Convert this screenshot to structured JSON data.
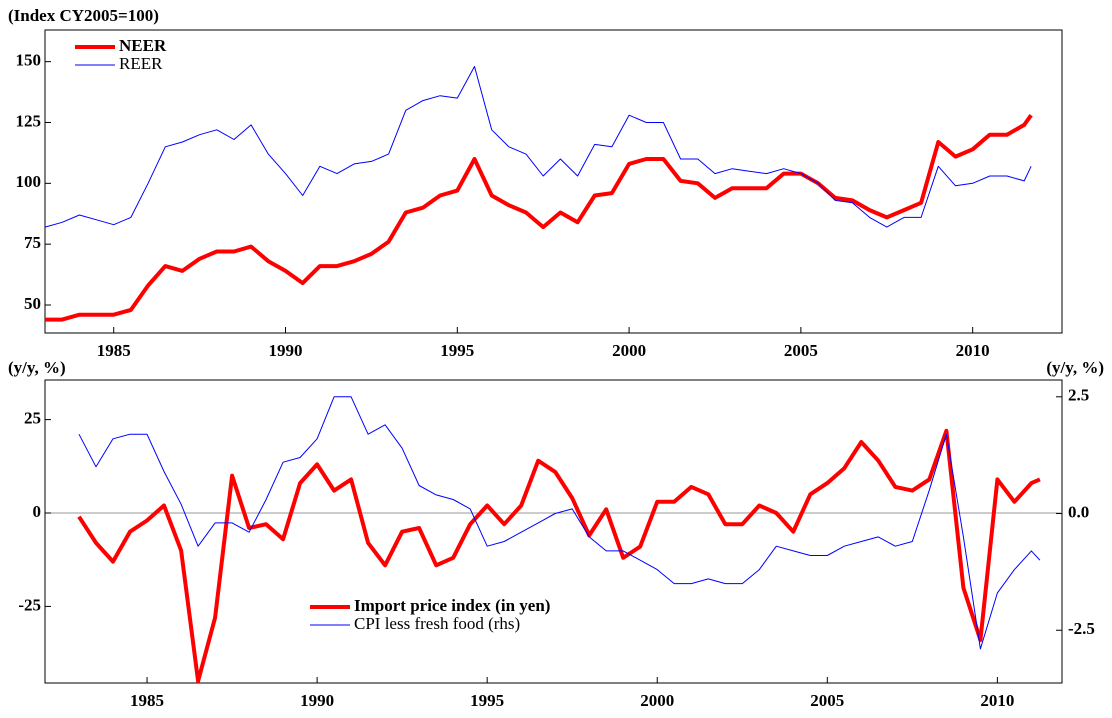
{
  "chart_data": [
    {
      "type": "line",
      "y_label": "(Index CY2005=100)",
      "x": [
        1983,
        1983.5,
        1984,
        1984.5,
        1985,
        1985.5,
        1986,
        1986.5,
        1987,
        1987.5,
        1988,
        1988.5,
        1989,
        1989.5,
        1990,
        1990.5,
        1991,
        1991.5,
        1992,
        1992.5,
        1993,
        1993.5,
        1994,
        1994.5,
        1995,
        1995.5,
        1996,
        1996.5,
        1997,
        1997.5,
        1998,
        1998.5,
        1999,
        1999.5,
        2000,
        2000.5,
        2001,
        2001.5,
        2002,
        2002.5,
        2003,
        2003.5,
        2004,
        2004.5,
        2005,
        2005.5,
        2006,
        2006.5,
        2007,
        2007.5,
        2008,
        2008.5,
        2009,
        2009.5,
        2010,
        2010.5,
        2011,
        2011.5,
        2011.7
      ],
      "series": [
        {
          "name": "NEER",
          "color": "#ff0000",
          "width": 4,
          "values": [
            44,
            44,
            46,
            46,
            46,
            48,
            58,
            66,
            64,
            69,
            72,
            72,
            74,
            68,
            64,
            59,
            66,
            66,
            68,
            71,
            76,
            88,
            90,
            95,
            97,
            110,
            95,
            91,
            88,
            82,
            88,
            84,
            95,
            96,
            108,
            110,
            110,
            101,
            100,
            94,
            98,
            98,
            98,
            104,
            104,
            100,
            94,
            93,
            89,
            86,
            89,
            92,
            117,
            111,
            114,
            120,
            120,
            124,
            128
          ]
        },
        {
          "name": "REER",
          "color": "#0000ff",
          "width": 1,
          "values": [
            82,
            84,
            87,
            85,
            83,
            86,
            100,
            115,
            117,
            120,
            122,
            118,
            124,
            112,
            104,
            95,
            107,
            104,
            108,
            109,
            112,
            130,
            134,
            136,
            135,
            148,
            122,
            115,
            112,
            103,
            110,
            103,
            116,
            115,
            128,
            125,
            125,
            110,
            110,
            104,
            106,
            105,
            104,
            106,
            104,
            100,
            93,
            92,
            86,
            82,
            86,
            86,
            107,
            99,
            100,
            103,
            103,
            101,
            107
          ]
        }
      ],
      "xlim": [
        1983.0,
        2012.6
      ],
      "xticks": [
        1985,
        1990,
        1995,
        2000,
        2005,
        2010
      ],
      "ylim": [
        38.5,
        163
      ],
      "yticks": [
        50,
        75,
        100,
        125,
        150
      ],
      "legend": "top-left"
    },
    {
      "type": "line",
      "y_label": "(y/y, %)",
      "y2_label": "(y/y, %)",
      "x": [
        1983,
        1983.5,
        1984,
        1984.5,
        1985,
        1985.5,
        1986,
        1986.5,
        1987,
        1987.5,
        1988,
        1988.5,
        1989,
        1989.5,
        1990,
        1990.5,
        1991,
        1991.5,
        1992,
        1992.5,
        1993,
        1993.5,
        1994,
        1994.5,
        1995,
        1995.5,
        1996,
        1996.5,
        1997,
        1997.5,
        1998,
        1998.5,
        1999,
        1999.5,
        2000,
        2000.5,
        2001,
        2001.5,
        2002,
        2002.5,
        2003,
        2003.5,
        2004,
        2004.5,
        2005,
        2005.5,
        2006,
        2006.5,
        2007,
        2007.5,
        2008,
        2008.5,
        2009,
        2009.5,
        2010,
        2010.5,
        2011,
        2011.25
      ],
      "series": [
        {
          "name": "Import price index (in yen)",
          "color": "#ff0000",
          "width": 4,
          "values": [
            -1,
            -8,
            -13,
            -5,
            -2,
            2,
            -10,
            -45,
            -28,
            10,
            -4,
            -3,
            -7,
            8,
            13,
            6,
            9,
            -8,
            -14,
            -5,
            -4,
            -14,
            -12,
            -3,
            2,
            -3,
            2,
            14,
            11,
            4,
            -6,
            1,
            -12,
            -9,
            3,
            3,
            7,
            5,
            -3,
            -3,
            2,
            0,
            -5,
            5,
            8,
            12,
            19,
            14,
            7,
            6,
            9,
            22,
            -20,
            -34,
            9,
            3,
            8,
            9
          ]
        },
        {
          "name": "CPI less fresh food (rhs)",
          "color": "#0000ff",
          "width": 1,
          "axis": "y2",
          "values": [
            1.7,
            1.0,
            1.6,
            1.7,
            1.7,
            0.9,
            0.2,
            -0.7,
            -0.2,
            -0.2,
            -0.4,
            0.3,
            1.1,
            1.2,
            1.6,
            2.5,
            2.5,
            1.7,
            1.9,
            1.4,
            0.6,
            0.4,
            0.3,
            0.1,
            -0.7,
            -0.6,
            -0.4,
            -0.2,
            0.0,
            0.1,
            -0.5,
            -0.8,
            -0.8,
            -1.0,
            -1.2,
            -1.5,
            -1.5,
            -1.4,
            -1.5,
            -1.5,
            -1.2,
            -0.7,
            -0.8,
            -0.9,
            -0.9,
            -0.7,
            -0.6,
            -0.5,
            -0.7,
            -0.6,
            0.5,
            1.7,
            -0.5,
            -2.9,
            -1.7,
            -1.2,
            -0.8,
            -1.0
          ]
        }
      ],
      "xlim": [
        1982.0,
        2011.9
      ],
      "xticks": [
        1985,
        1990,
        1995,
        2000,
        2005,
        2010
      ],
      "ylim": [
        -45.5,
        35.6
      ],
      "yticks": [
        -25,
        0,
        25
      ],
      "y2lim": [
        -3.63,
        2.86
      ],
      "y2ticks": [
        -2.5,
        {
          "value": 0,
          "label": "0.0"
        },
        2.5
      ],
      "zero_line": true,
      "legend": "bottom-center"
    }
  ]
}
